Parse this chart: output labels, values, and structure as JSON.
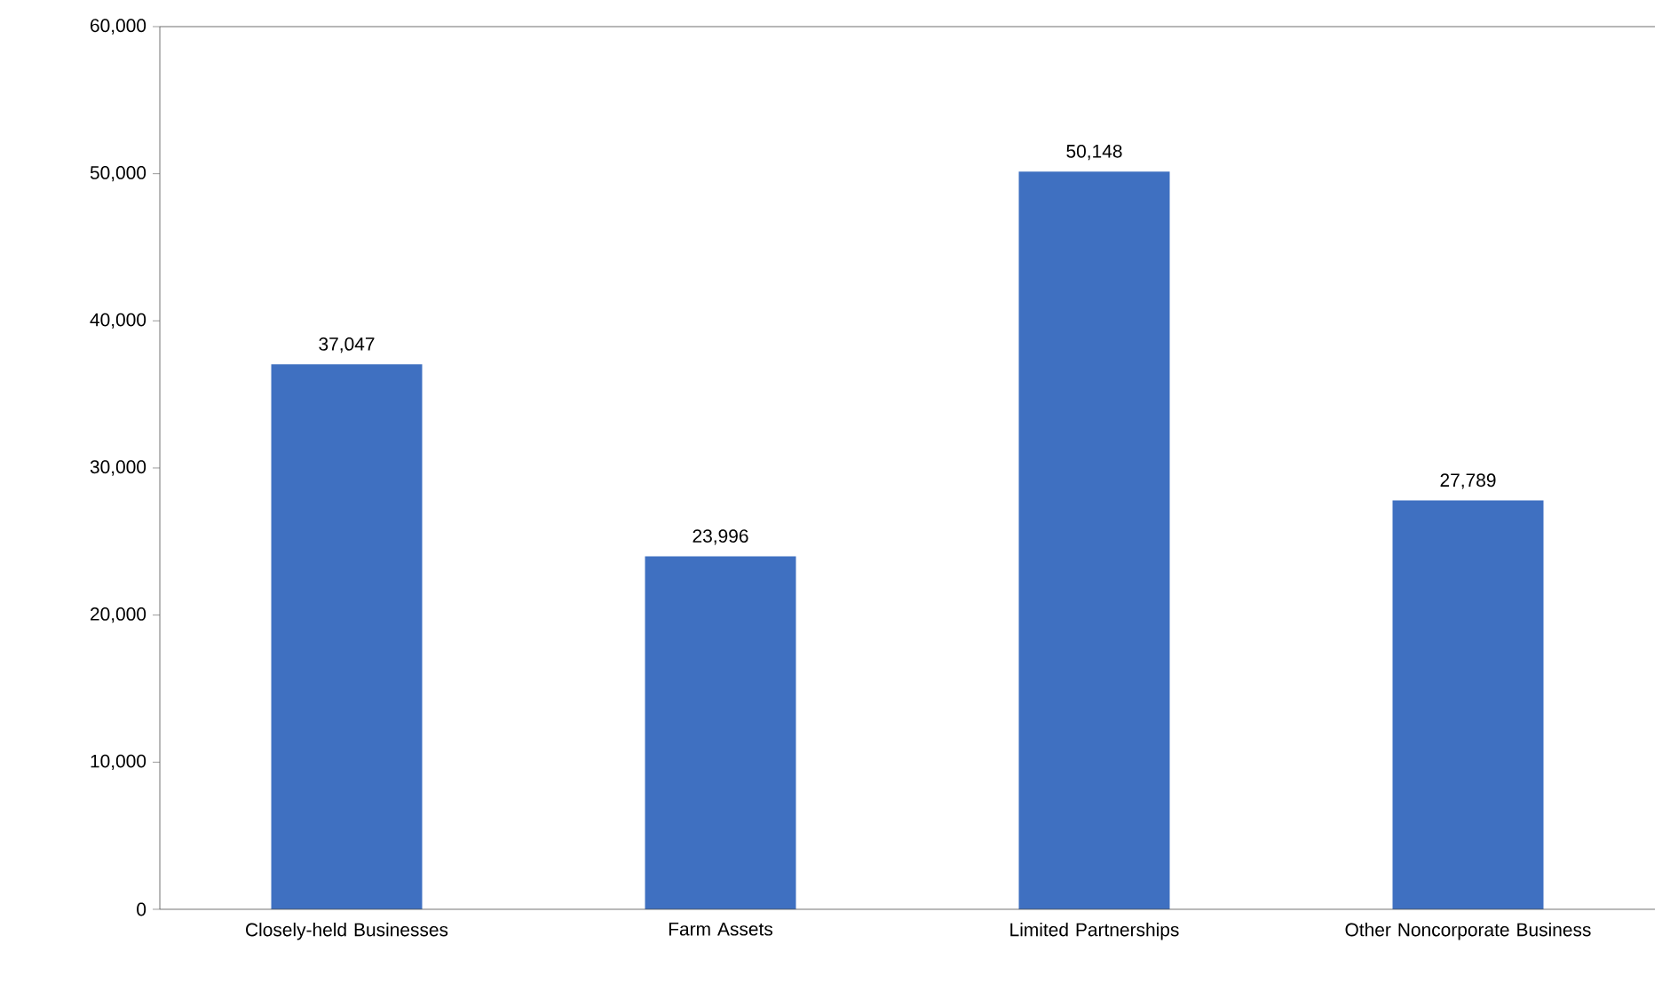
{
  "chart_data": {
    "type": "bar",
    "categories": [
      "Closely-held Businesses",
      "Farm Assets",
      "Limited Partnerships",
      "Other Noncorporate Business"
    ],
    "values": [
      37047,
      23996,
      50148,
      27789
    ],
    "value_labels": [
      "37,047",
      "23,996",
      "50,148",
      "27,789"
    ],
    "color": "#3f70c1",
    "ylim": [
      0,
      60000
    ],
    "yticks": [
      {
        "value": 0,
        "label": "0"
      },
      {
        "value": 10000,
        "label": "10,000"
      },
      {
        "value": 20000,
        "label": "20,000"
      },
      {
        "value": 30000,
        "label": "30,000"
      },
      {
        "value": 40000,
        "label": "40,000"
      },
      {
        "value": 50000,
        "label": "50,000"
      },
      {
        "value": 60000,
        "label": "60,000"
      }
    ]
  }
}
